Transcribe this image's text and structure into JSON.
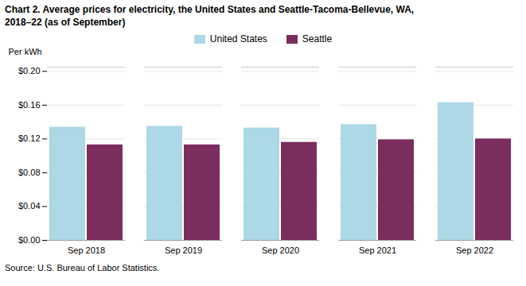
{
  "chart_data": {
    "type": "bar",
    "title": "Chart 2. Average prices for electricity, the United States and Seattle-Tacoma-Bellevue, WA,",
    "subtitle": "2018–22 (as of September)",
    "y_label": "Per kWh",
    "source": "Source: U.S. Bureau of Labor Statistics.",
    "categories": [
      "Sep 2018",
      "Sep 2019",
      "Sep 2020",
      "Sep 2021",
      "Sep 2022"
    ],
    "series": [
      {
        "name": "United States",
        "color": "#add8e6",
        "values": [
          0.134,
          0.135,
          0.133,
          0.137,
          0.163
        ]
      },
      {
        "name": "Seattle",
        "color": "#7B2D5E",
        "values": [
          0.113,
          0.113,
          0.116,
          0.119,
          0.12
        ]
      }
    ],
    "ylim": [
      0.0,
      0.205
    ],
    "yticks": [
      {
        "value": 0.0,
        "label": "$0.00"
      },
      {
        "value": 0.04,
        "label": "$0.04"
      },
      {
        "value": 0.08,
        "label": "$0.08"
      },
      {
        "value": 0.12,
        "label": "$0.12"
      },
      {
        "value": 0.16,
        "label": "$0.16"
      },
      {
        "value": 0.2,
        "label": "$0.20"
      }
    ],
    "grid": true,
    "legend": "top"
  }
}
